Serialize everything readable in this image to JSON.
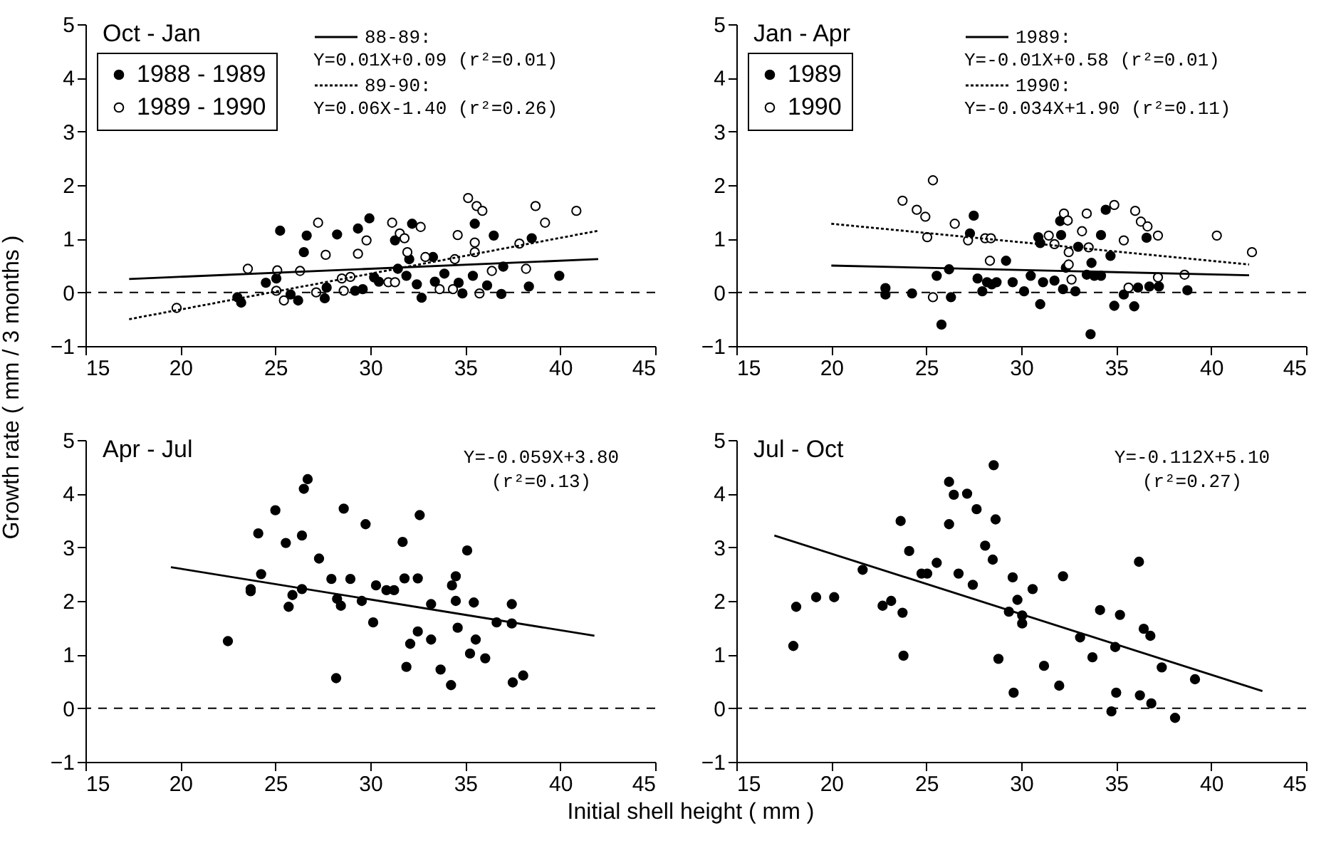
{
  "chart_data": [
    {
      "type": "scatter",
      "title": "Oct - Jan",
      "xlim": [
        15,
        45
      ],
      "ylim": [
        -1,
        5
      ],
      "xticks": [
        15,
        20,
        25,
        30,
        35,
        40,
        45
      ],
      "yticks": [
        -1,
        0,
        1,
        2,
        3,
        4,
        5
      ],
      "legend": "top left",
      "marker": "circle",
      "series": [
        {
          "name": "1988 - 1989",
          "color": "#000000",
          "x": [
            23.2,
            23.0,
            25.25,
            26.65,
            26.5,
            28.25,
            29.35,
            29.95,
            24.5,
            26.2,
            25.8,
            27.6,
            27.7,
            29.2,
            29.6,
            30.2,
            30.45,
            31.3,
            31.45,
            32.05,
            32.2,
            32.7,
            32.45,
            33.3,
            33.4,
            33.9,
            34.65,
            34.85,
            35.5,
            35.4,
            36.15,
            36.5,
            37.0,
            36.9,
            38.35,
            38.5,
            39.95,
            31.9,
            25.05
          ],
          "values": [
            -0.19,
            -0.09,
            1.15,
            1.06,
            0.75,
            1.08,
            1.19,
            1.38,
            0.18,
            -0.15,
            -0.04,
            -0.11,
            0.09,
            0.03,
            0.06,
            0.28,
            0.2,
            0.97,
            0.44,
            0.62,
            1.28,
            -0.1,
            0.15,
            0.66,
            0.2,
            0.35,
            0.18,
            -0.02,
            1.28,
            0.31,
            0.13,
            1.06,
            0.48,
            -0.03,
            0.11,
            1.01,
            0.31,
            0.31,
            0.26
          ]
        },
        {
          "name": "1989 - 1990",
          "color": "#ffffff",
          "x": [
            19.8,
            23.55,
            25.1,
            26.3,
            25.45,
            25.05,
            27.25,
            27.65,
            27.15,
            28.6,
            28.5,
            28.95,
            29.35,
            29.8,
            31.15,
            31.55,
            31.8,
            32.65,
            31.95,
            30.95,
            31.3,
            32.9,
            33.65,
            34.35,
            34.6,
            34.45,
            35.15,
            35.5,
            35.5,
            35.6,
            35.9,
            35.75,
            36.4,
            37.85,
            38.2,
            38.7,
            39.2,
            40.85
          ],
          "values": [
            -0.29,
            0.44,
            0.41,
            0.4,
            -0.15,
            0.03,
            1.3,
            0.7,
            0,
            0.03,
            0.26,
            0.29,
            0.72,
            0.97,
            1.3,
            1.1,
            1.01,
            1.22,
            0.75,
            0.19,
            0.19,
            0.66,
            0.06,
            0.06,
            1.07,
            0.62,
            1.76,
            0.93,
            0.75,
            1.61,
            1.52,
            -0.02,
            0.4,
            0.91,
            0.44,
            1.61,
            1.3,
            1.52
          ]
        },
        {
          "type": "line",
          "name": "88-89:",
          "color": "#000000",
          "marker": "none",
          "line_style": "solid",
          "x": [
            17.3,
            42
          ],
          "values": [
            0.25,
            0.62
          ]
        },
        {
          "type": "line",
          "name": "89-90:",
          "color": "#000000",
          "marker": "none",
          "line_style": "dotted",
          "x": [
            17.3,
            42
          ],
          "values": [
            -0.5,
            1.15
          ]
        }
      ],
      "ref_lines": [
        {
          "axis": "y",
          "value": 0,
          "line_style": "dashed"
        }
      ],
      "annotations": [
        "Y=0.01X+0.09 (r²=0.01)",
        "Y=0.06X-1.40 (r²=0.26)"
      ]
    },
    {
      "type": "scatter",
      "title": "Jan - Apr",
      "xlim": [
        15,
        45
      ],
      "ylim": [
        -1,
        5
      ],
      "xticks": [
        15,
        20,
        25,
        30,
        35,
        40,
        45
      ],
      "yticks": [
        -1,
        0,
        1,
        2,
        3,
        4,
        5
      ],
      "legend": "top left",
      "marker": "circle",
      "series": [
        {
          "name": "1989",
          "color": "#000000",
          "x": [
            22.85,
            22.85,
            24.25,
            25.55,
            26.2,
            26.3,
            25.8,
            27.5,
            27.3,
            27.7,
            27.95,
            28.2,
            28.45,
            28.7,
            29.2,
            29.55,
            30.15,
            30.5,
            30.9,
            31.0,
            31.0,
            31.15,
            31.75,
            32.05,
            32.1,
            32.2,
            32.35,
            32.85,
            33.0,
            33.45,
            33.7,
            33.65,
            33.85,
            34.2,
            34.2,
            34.45,
            34.7,
            34.9,
            35.4,
            35.95,
            36.15,
            36.6,
            36.75,
            37.25,
            38.75
          ],
          "values": [
            0.08,
            -0.04,
            -0.02,
            0.31,
            0.43,
            -0.09,
            -0.6,
            1.43,
            1.1,
            0.26,
            0.02,
            0.19,
            0.15,
            0.19,
            0.59,
            0.19,
            0.02,
            0.31,
            1.03,
            0.92,
            -0.22,
            0.19,
            0.22,
            1.33,
            1.07,
            0.06,
            0.46,
            0.02,
            0.85,
            0.33,
            0.55,
            -0.78,
            0.31,
            0.31,
            1.07,
            1.54,
            0.68,
            -0.25,
            -0.04,
            -0.26,
            0.09,
            1.02,
            0.11,
            0.11,
            0.04
          ]
        },
        {
          "name": "1990",
          "color": "#ffffff",
          "x": [
            23.75,
            24.5,
            24.95,
            25.05,
            25.35,
            25.35,
            26.5,
            27.2,
            28.1,
            28.4,
            28.35,
            31.45,
            31.75,
            32.25,
            32.45,
            32.5,
            32.5,
            32.65,
            33.2,
            33.45,
            33.55,
            34.9,
            35.4,
            36.0,
            36.3,
            36.65,
            37.2,
            37.2,
            38.6,
            40.3,
            42.15,
            35.65
          ],
          "values": [
            1.71,
            1.54,
            1.41,
            1.03,
            2.09,
            -0.09,
            1.28,
            0.97,
            1.01,
            1.01,
            0.59,
            1.06,
            0.9,
            1.47,
            1.34,
            0.75,
            0.52,
            0.24,
            1.14,
            1.47,
            0.84,
            1.63,
            0.97,
            1.52,
            1.32,
            1.23,
            1.06,
            0.28,
            0.33,
            1.06,
            0.75,
            0.09
          ]
        },
        {
          "type": "line",
          "name": "1989:",
          "color": "#000000",
          "marker": "none",
          "line_style": "solid",
          "x": [
            20,
            42
          ],
          "values": [
            0.5,
            0.32
          ]
        },
        {
          "type": "line",
          "name": "1990:",
          "color": "#000000",
          "marker": "none",
          "line_style": "dotted",
          "x": [
            20,
            42
          ],
          "values": [
            1.28,
            0.52
          ]
        }
      ],
      "ref_lines": [
        {
          "axis": "y",
          "value": 0,
          "line_style": "dashed"
        }
      ],
      "annotations": [
        "Y=-0.01X+0.58 (r²=0.01)",
        "Y=-0.034X+1.90 (r²=0.11)"
      ]
    },
    {
      "type": "scatter",
      "title": "Apr - Jul",
      "xlabel": "Initial shell height ( mm )",
      "ylabel": "Growth rate ( mm / 3 months )",
      "xlim": [
        15,
        45
      ],
      "ylim": [
        -1,
        5
      ],
      "xticks": [
        15,
        20,
        25,
        30,
        35,
        40,
        45
      ],
      "yticks": [
        -1,
        0,
        1,
        2,
        3,
        4,
        5
      ],
      "marker": "circle",
      "series": [
        {
          "color": "#000000",
          "x": [
            22.5,
            23.7,
            23.7,
            24.1,
            24.25,
            25.0,
            25.55,
            25.7,
            25.9,
            26.4,
            26.4,
            26.5,
            26.7,
            27.3,
            27.95,
            28.2,
            28.25,
            28.45,
            28.6,
            28.95,
            29.55,
            29.75,
            30.15,
            30.3,
            30.85,
            31.25,
            31.7,
            31.8,
            31.9,
            32.1,
            32.5,
            32.5,
            32.6,
            33.2,
            33.2,
            33.7,
            34.25,
            34.3,
            34.5,
            34.5,
            34.6,
            35.1,
            35.25,
            35.45,
            35.55,
            36.05,
            36.65,
            37.45,
            37.45,
            37.5,
            38.05
          ],
          "values": [
            1.25,
            2.22,
            2.18,
            3.26,
            2.5,
            3.69,
            3.08,
            1.89,
            2.11,
            2.22,
            3.22,
            4.09,
            4.27,
            2.79,
            2.41,
            0.56,
            2.04,
            1.91,
            3.72,
            2.41,
            2.0,
            3.43,
            1.6,
            2.29,
            2.2,
            2.2,
            3.1,
            2.42,
            0.77,
            1.2,
            1.43,
            2.42,
            3.6,
            1.94,
            1.28,
            0.72,
            0.43,
            2.29,
            2.46,
            2.0,
            1.5,
            2.94,
            1.02,
            1.97,
            1.28,
            0.93,
            1.6,
            1.94,
            1.58,
            0.48,
            0.61
          ]
        },
        {
          "type": "line",
          "color": "#000000",
          "marker": "none",
          "line_style": "solid",
          "x": [
            19.5,
            41.8
          ],
          "values": [
            2.63,
            1.35
          ]
        }
      ],
      "ref_lines": [
        {
          "axis": "y",
          "value": 0,
          "line_style": "dashed"
        }
      ],
      "annotations": [
        "Y=-0.059X+3.80",
        "(r²=0.13)"
      ]
    },
    {
      "type": "scatter",
      "title": "Jul - Oct",
      "xlim": [
        15,
        45
      ],
      "ylim": [
        -1,
        5
      ],
      "xticks": [
        15,
        20,
        25,
        30,
        35,
        40,
        45
      ],
      "yticks": [
        -1,
        0,
        1,
        2,
        3,
        4,
        5
      ],
      "marker": "circle",
      "series": [
        {
          "color": "#000000",
          "x": [
            18.0,
            18.15,
            19.2,
            20.15,
            21.65,
            22.7,
            23.15,
            23.65,
            23.75,
            23.8,
            24.1,
            24.75,
            25.05,
            25.55,
            26.2,
            26.2,
            26.45,
            26.7,
            27.15,
            27.45,
            27.65,
            28.1,
            28.5,
            28.55,
            28.65,
            28.8,
            29.35,
            29.55,
            29.6,
            29.8,
            30.05,
            30.05,
            30.6,
            31.2,
            32.0,
            32.2,
            33.1,
            33.75,
            34.15,
            34.75,
            34.95,
            35.0,
            35.2,
            36.2,
            36.25,
            36.45,
            36.8,
            36.85,
            37.4,
            38.1,
            39.15
          ],
          "values": [
            1.16,
            1.89,
            2.07,
            2.07,
            2.58,
            1.91,
            2.0,
            3.49,
            1.78,
            0.98,
            2.93,
            2.51,
            2.51,
            2.71,
            4.22,
            3.43,
            3.98,
            2.51,
            4.0,
            2.3,
            3.71,
            3.03,
            2.77,
            4.53,
            3.52,
            0.92,
            1.8,
            2.44,
            0.29,
            2.02,
            1.73,
            1.58,
            2.22,
            0.79,
            0.42,
            2.46,
            1.32,
            0.95,
            1.83,
            -0.06,
            1.14,
            0.29,
            1.74,
            2.73,
            0.24,
            1.48,
            1.35,
            0.09,
            0.76,
            -0.18,
            0.54
          ]
        },
        {
          "type": "line",
          "color": "#000000",
          "marker": "none",
          "line_style": "solid",
          "x": [
            17,
            42.7
          ],
          "values": [
            3.22,
            0.32
          ]
        }
      ],
      "ref_lines": [
        {
          "axis": "y",
          "value": 0,
          "line_style": "dashed"
        }
      ],
      "annotations": [
        "Y=-0.112X+5.10",
        "(r²=0.27)"
      ]
    }
  ]
}
